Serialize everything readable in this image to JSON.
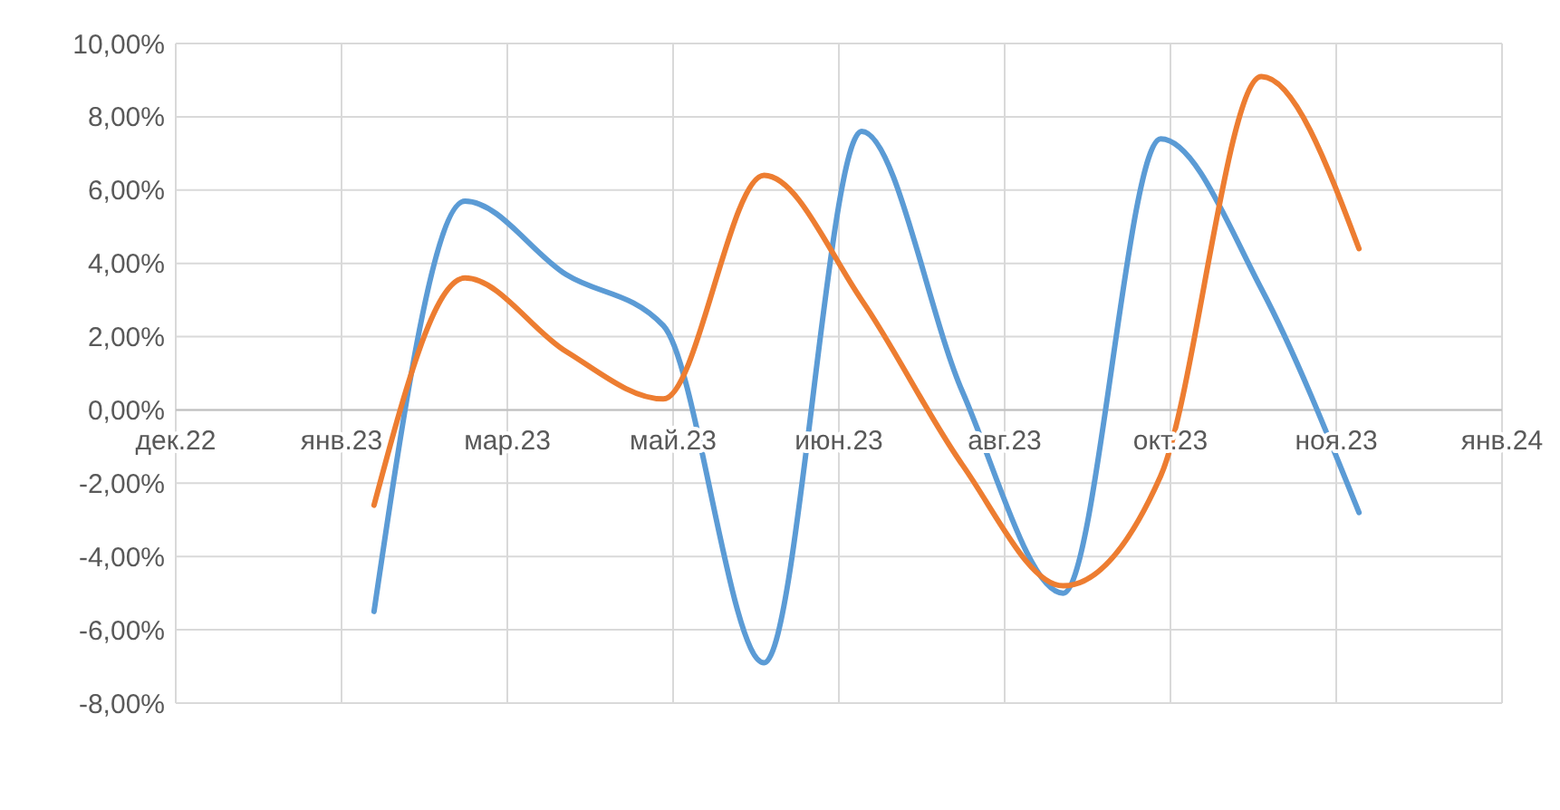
{
  "chart_data": {
    "type": "line",
    "x": [
      "2023-01-31",
      "2023-02-28",
      "2023-03-31",
      "2023-04-30",
      "2023-05-31",
      "2023-06-30",
      "2023-07-31",
      "2023-08-31",
      "2023-09-30",
      "2023-10-31",
      "2023-11-30"
    ],
    "series": [
      {
        "color": "#5b9bd5",
        "values": [
          -5.5,
          5.7,
          3.7,
          2.3,
          -6.9,
          7.6,
          0.5,
          -5.0,
          7.4,
          3.3,
          -2.8
        ]
      },
      {
        "color": "#ed7d31",
        "values": [
          -2.6,
          3.6,
          1.6,
          0.3,
          6.4,
          3.0,
          -1.5,
          -4.8,
          -1.8,
          9.1,
          4.4
        ]
      }
    ],
    "xlim": [
      "2022-12-01",
      "2024-01-13"
    ],
    "xticks": [
      {
        "value": "2022-12-01",
        "label": "дек.22"
      },
      {
        "value": "2023-01-21",
        "label": "янв.23"
      },
      {
        "value": "2023-03-13",
        "label": "мар.23"
      },
      {
        "value": "2023-05-03",
        "label": "май.23"
      },
      {
        "value": "2023-06-23",
        "label": "июн.23"
      },
      {
        "value": "2023-08-13",
        "label": "авг.23"
      },
      {
        "value": "2023-10-03",
        "label": "окт.23"
      },
      {
        "value": "2023-11-23",
        "label": "ноя.23"
      },
      {
        "value": "2024-01-13",
        "label": "янв.24"
      }
    ],
    "ylim": [
      -8,
      10
    ],
    "yticks": [
      {
        "value": -8,
        "label": "-8,00%"
      },
      {
        "value": -6,
        "label": "-6,00%"
      },
      {
        "value": -4,
        "label": "-4,00%"
      },
      {
        "value": -2,
        "label": "-2,00%"
      },
      {
        "value": 0,
        "label": "0,00%"
      },
      {
        "value": 2,
        "label": "2,00%"
      },
      {
        "value": 4,
        "label": "4,00%"
      },
      {
        "value": 6,
        "label": "6,00%"
      },
      {
        "value": 8,
        "label": "8,00%"
      },
      {
        "value": 10,
        "label": "10,00%"
      }
    ],
    "grid": true,
    "line_style": "solid",
    "marker": "none"
  }
}
